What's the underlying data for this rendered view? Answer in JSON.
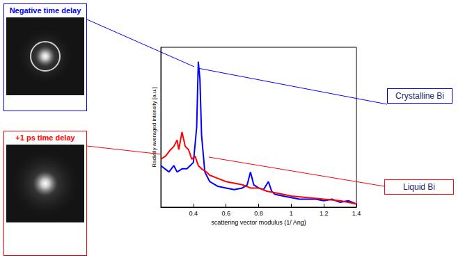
{
  "chart_data": {
    "type": "line",
    "x_label": "scattering vector modulus (1/ Ang)",
    "y_label": "Radially averaged intensity [a.u.]",
    "xlim": [
      0.2,
      1.4
    ],
    "xticks": [
      0.4,
      0.6,
      0.8,
      1,
      1.2,
      1.4
    ],
    "ylim": [
      0,
      1
    ],
    "tick_labels": "x",
    "grid": false,
    "annotations": [
      "Negative time delay",
      "+1 ps time delay"
    ],
    "series": [
      {
        "name": "Crystalline Bi",
        "color": "#0000ff",
        "x": [
          0.2,
          0.25,
          0.28,
          0.3,
          0.33,
          0.36,
          0.38,
          0.4,
          0.42,
          0.43,
          0.44,
          0.45,
          0.47,
          0.5,
          0.55,
          0.6,
          0.65,
          0.7,
          0.73,
          0.75,
          0.77,
          0.8,
          0.83,
          0.86,
          0.88,
          0.9,
          0.95,
          1.0,
          1.05,
          1.1,
          1.15,
          1.2,
          1.25,
          1.3,
          1.35,
          1.4
        ],
        "values": [
          0.26,
          0.22,
          0.26,
          0.22,
          0.24,
          0.24,
          0.26,
          0.28,
          0.5,
          0.91,
          0.8,
          0.45,
          0.22,
          0.16,
          0.13,
          0.12,
          0.11,
          0.12,
          0.14,
          0.22,
          0.14,
          0.12,
          0.11,
          0.16,
          0.1,
          0.08,
          0.07,
          0.06,
          0.05,
          0.05,
          0.05,
          0.04,
          0.05,
          0.03,
          0.04,
          0.02
        ]
      },
      {
        "name": "Liquid Bi",
        "color": "#ff0000",
        "x": [
          0.2,
          0.23,
          0.26,
          0.28,
          0.3,
          0.31,
          0.33,
          0.35,
          0.37,
          0.39,
          0.41,
          0.43,
          0.45,
          0.48,
          0.5,
          0.55,
          0.6,
          0.65,
          0.7,
          0.75,
          0.8,
          0.85,
          0.9,
          0.95,
          1.0,
          1.1,
          1.2,
          1.3,
          1.4
        ],
        "values": [
          0.3,
          0.32,
          0.36,
          0.38,
          0.42,
          0.36,
          0.47,
          0.38,
          0.36,
          0.3,
          0.32,
          0.26,
          0.24,
          0.22,
          0.2,
          0.18,
          0.16,
          0.15,
          0.14,
          0.12,
          0.12,
          0.1,
          0.09,
          0.08,
          0.07,
          0.06,
          0.05,
          0.04,
          0.02
        ]
      }
    ]
  }
}
